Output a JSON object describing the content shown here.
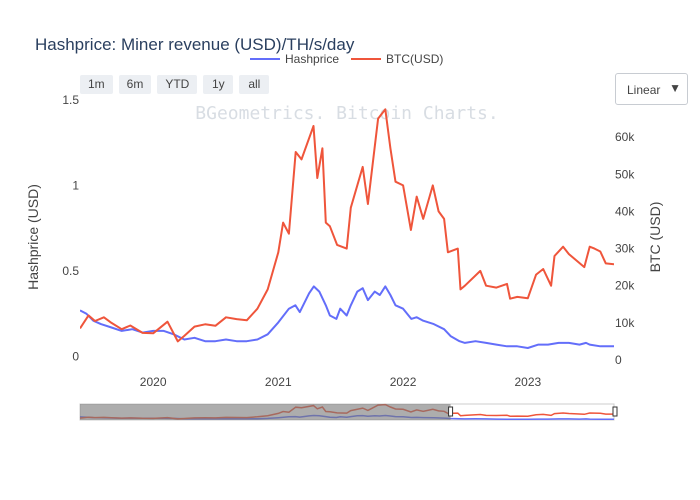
{
  "chart_data": {
    "type": "line",
    "title": "Hashprice: Miner revenue (USD)/TH/s/day",
    "watermark": "BGeometrics. Bitcoin Charts.",
    "range_buttons": [
      "1m",
      "6m",
      "YTD",
      "1y",
      "all"
    ],
    "scale_dropdown": {
      "selected": "Linear",
      "arrow": "▼"
    },
    "legend_placement": "top-center",
    "grid": false,
    "xlim": [
      "2019-06-01",
      "2023-09-10"
    ],
    "x_ticks": [
      {
        "label": "2020",
        "date": "2020-01-01"
      },
      {
        "label": "2021",
        "date": "2021-01-01"
      },
      {
        "label": "2022",
        "date": "2022-01-01"
      },
      {
        "label": "2023",
        "date": "2023-01-01"
      }
    ],
    "y_left": {
      "label": "Hashprice (USD)",
      "range": [
        -0.02,
        1.5
      ],
      "ticks": [
        "0",
        "0.5",
        "1",
        "1.5"
      ],
      "tick_values": [
        0,
        0.5,
        1,
        1.5
      ]
    },
    "y_right": {
      "label": "BTC (USD)",
      "range": [
        0,
        70000
      ],
      "ticks": [
        "0",
        "10k",
        "20k",
        "30k",
        "40k",
        "50k",
        "60k",
        "70k"
      ],
      "tick_values": [
        0,
        10000,
        20000,
        30000,
        40000,
        50000,
        60000,
        70000
      ]
    },
    "range_slider": {
      "selected_start": "2019-06-01",
      "selected_end": "2022-05-20"
    },
    "series": [
      {
        "name": "Hashprice",
        "axis": "left",
        "color": "#636efa",
        "points": [
          [
            "2019-06-01",
            0.27
          ],
          [
            "2019-06-20",
            0.25
          ],
          [
            "2019-07-10",
            0.21
          ],
          [
            "2019-08-01",
            0.19
          ],
          [
            "2019-09-01",
            0.17
          ],
          [
            "2019-10-01",
            0.15
          ],
          [
            "2019-11-01",
            0.16
          ],
          [
            "2019-12-01",
            0.14
          ],
          [
            "2020-01-01",
            0.15
          ],
          [
            "2020-02-01",
            0.15
          ],
          [
            "2020-03-01",
            0.13
          ],
          [
            "2020-04-01",
            0.1
          ],
          [
            "2020-05-01",
            0.11
          ],
          [
            "2020-06-01",
            0.09
          ],
          [
            "2020-07-01",
            0.09
          ],
          [
            "2020-08-01",
            0.1
          ],
          [
            "2020-09-01",
            0.09
          ],
          [
            "2020-10-01",
            0.09
          ],
          [
            "2020-11-01",
            0.1
          ],
          [
            "2020-12-01",
            0.13
          ],
          [
            "2021-01-01",
            0.2
          ],
          [
            "2021-02-01",
            0.28
          ],
          [
            "2021-02-20",
            0.3
          ],
          [
            "2021-03-05",
            0.26
          ],
          [
            "2021-04-01",
            0.37
          ],
          [
            "2021-04-15",
            0.41
          ],
          [
            "2021-05-01",
            0.38
          ],
          [
            "2021-05-20",
            0.3
          ],
          [
            "2021-06-01",
            0.24
          ],
          [
            "2021-06-20",
            0.22
          ],
          [
            "2021-07-01",
            0.28
          ],
          [
            "2021-07-20",
            0.24
          ],
          [
            "2021-08-01",
            0.3
          ],
          [
            "2021-08-20",
            0.38
          ],
          [
            "2021-09-05",
            0.4
          ],
          [
            "2021-09-20",
            0.33
          ],
          [
            "2021-10-10",
            0.38
          ],
          [
            "2021-10-25",
            0.36
          ],
          [
            "2021-11-10",
            0.41
          ],
          [
            "2021-11-25",
            0.36
          ],
          [
            "2021-12-10",
            0.3
          ],
          [
            "2022-01-01",
            0.28
          ],
          [
            "2022-01-25",
            0.22
          ],
          [
            "2022-02-10",
            0.23
          ],
          [
            "2022-03-01",
            0.21
          ],
          [
            "2022-04-01",
            0.19
          ],
          [
            "2022-05-01",
            0.16
          ],
          [
            "2022-05-20",
            0.12
          ],
          [
            "2022-06-15",
            0.09
          ],
          [
            "2022-07-01",
            0.08
          ],
          [
            "2022-08-01",
            0.09
          ],
          [
            "2022-09-01",
            0.08
          ],
          [
            "2022-10-01",
            0.07
          ],
          [
            "2022-11-01",
            0.06
          ],
          [
            "2022-12-01",
            0.06
          ],
          [
            "2023-01-01",
            0.05
          ],
          [
            "2023-02-01",
            0.07
          ],
          [
            "2023-03-01",
            0.07
          ],
          [
            "2023-04-01",
            0.08
          ],
          [
            "2023-05-01",
            0.08
          ],
          [
            "2023-06-01",
            0.07
          ],
          [
            "2023-06-20",
            0.08
          ],
          [
            "2023-07-01",
            0.07
          ],
          [
            "2023-08-01",
            0.06
          ],
          [
            "2023-09-10",
            0.06
          ]
        ]
      },
      {
        "name": "BTC(USD)",
        "axis": "right",
        "color": "#ef553b",
        "points": [
          [
            "2019-06-01",
            8500
          ],
          [
            "2019-06-26",
            12000
          ],
          [
            "2019-07-15",
            10500
          ],
          [
            "2019-08-10",
            11500
          ],
          [
            "2019-09-01",
            10000
          ],
          [
            "2019-10-01",
            8300
          ],
          [
            "2019-10-26",
            9300
          ],
          [
            "2019-12-01",
            7300
          ],
          [
            "2020-01-01",
            7200
          ],
          [
            "2020-02-12",
            10300
          ],
          [
            "2020-03-13",
            5000
          ],
          [
            "2020-04-01",
            6500
          ],
          [
            "2020-05-01",
            9000
          ],
          [
            "2020-06-01",
            9600
          ],
          [
            "2020-07-01",
            9200
          ],
          [
            "2020-08-01",
            11500
          ],
          [
            "2020-09-01",
            11000
          ],
          [
            "2020-10-01",
            10700
          ],
          [
            "2020-11-01",
            13800
          ],
          [
            "2020-12-01",
            19000
          ],
          [
            "2021-01-01",
            29000
          ],
          [
            "2021-01-15",
            37000
          ],
          [
            "2021-02-01",
            34000
          ],
          [
            "2021-02-21",
            56000
          ],
          [
            "2021-03-10",
            54000
          ],
          [
            "2021-04-14",
            63000
          ],
          [
            "2021-04-25",
            49000
          ],
          [
            "2021-05-10",
            57000
          ],
          [
            "2021-05-20",
            37000
          ],
          [
            "2021-06-01",
            36000
          ],
          [
            "2021-06-22",
            31000
          ],
          [
            "2021-07-20",
            30000
          ],
          [
            "2021-08-01",
            41000
          ],
          [
            "2021-09-05",
            52000
          ],
          [
            "2021-09-20",
            42000
          ],
          [
            "2021-10-20",
            65000
          ],
          [
            "2021-11-10",
            67500
          ],
          [
            "2021-11-25",
            57000
          ],
          [
            "2021-12-10",
            48000
          ],
          [
            "2022-01-01",
            47000
          ],
          [
            "2022-01-24",
            35000
          ],
          [
            "2022-02-10",
            44000
          ],
          [
            "2022-03-01",
            38000
          ],
          [
            "2022-03-29",
            47000
          ],
          [
            "2022-04-15",
            40000
          ],
          [
            "2022-05-01",
            38000
          ],
          [
            "2022-05-12",
            29000
          ],
          [
            "2022-06-10",
            30000
          ],
          [
            "2022-06-18",
            19000
          ],
          [
            "2022-07-01",
            20000
          ],
          [
            "2022-08-15",
            24000
          ],
          [
            "2022-09-01",
            20000
          ],
          [
            "2022-10-01",
            19500
          ],
          [
            "2022-11-01",
            20500
          ],
          [
            "2022-11-10",
            16500
          ],
          [
            "2022-12-01",
            17000
          ],
          [
            "2023-01-01",
            16600
          ],
          [
            "2023-01-25",
            23000
          ],
          [
            "2023-02-15",
            24500
          ],
          [
            "2023-03-10",
            20000
          ],
          [
            "2023-03-20",
            28000
          ],
          [
            "2023-04-14",
            30500
          ],
          [
            "2023-05-01",
            28500
          ],
          [
            "2023-06-15",
            25000
          ],
          [
            "2023-07-01",
            30500
          ],
          [
            "2023-07-15",
            30000
          ],
          [
            "2023-08-01",
            29200
          ],
          [
            "2023-08-17",
            26000
          ],
          [
            "2023-09-10",
            25800
          ]
        ]
      }
    ]
  }
}
